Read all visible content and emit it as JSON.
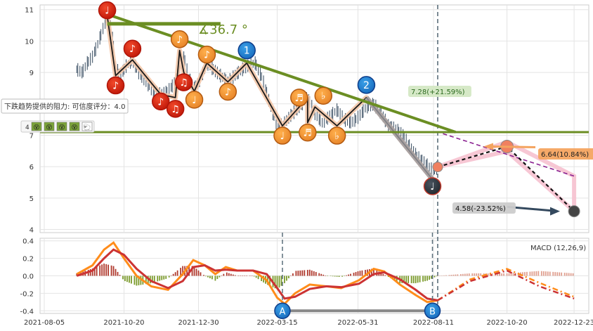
{
  "chart_data": [
    {
      "type": "line",
      "panel": "price",
      "y_ticks": [
        4,
        5,
        6,
        7,
        8,
        9,
        10,
        11
      ],
      "ylim": [
        3.9,
        11.15
      ],
      "x_tick_labels": [
        "2021-08-05",
        "2021-10-20",
        "2021-12-30",
        "2022-03-15",
        "2022-05-31",
        "2022-08-11",
        "2022-10-20",
        "2022-12-23"
      ],
      "price_series": [
        [
          "2021-09-05",
          9.1
        ],
        [
          "2021-09-10",
          9.0
        ],
        [
          "2021-09-15",
          9.3
        ],
        [
          "2021-09-20",
          9.5
        ],
        [
          "2021-09-25",
          9.9
        ],
        [
          "2021-10-01",
          10.5
        ],
        [
          "2021-10-04",
          10.8
        ],
        [
          "2021-10-08",
          10.4
        ],
        [
          "2021-10-12",
          9.2
        ],
        [
          "2021-10-16",
          8.9
        ],
        [
          "2021-10-22",
          9.2
        ],
        [
          "2021-10-28",
          9.4
        ],
        [
          "2021-11-03",
          9.0
        ],
        [
          "2021-11-10",
          8.7
        ],
        [
          "2021-11-17",
          8.4
        ],
        [
          "2021-11-24",
          8.3
        ],
        [
          "2021-12-01",
          8.4
        ],
        [
          "2021-12-08",
          8.7
        ],
        [
          "2021-12-12",
          9.1
        ],
        [
          "2021-12-16",
          9.5
        ],
        [
          "2021-12-21",
          8.8
        ],
        [
          "2021-12-26",
          8.5
        ],
        [
          "2022-01-01",
          8.8
        ],
        [
          "2022-01-07",
          9.3
        ],
        [
          "2022-01-13",
          9.1
        ],
        [
          "2022-01-20",
          8.9
        ],
        [
          "2022-01-27",
          8.7
        ],
        [
          "2022-02-06",
          9.0
        ],
        [
          "2022-02-14",
          9.2
        ],
        [
          "2022-02-22",
          9.3
        ],
        [
          "2022-03-01",
          8.8
        ],
        [
          "2022-03-08",
          8.0
        ],
        [
          "2022-03-14",
          7.4
        ],
        [
          "2022-03-20",
          7.3
        ],
        [
          "2022-03-27",
          7.6
        ],
        [
          "2022-04-05",
          7.9
        ],
        [
          "2022-04-13",
          8.2
        ],
        [
          "2022-04-20",
          7.7
        ],
        [
          "2022-04-27",
          7.4
        ],
        [
          "2022-05-04",
          7.6
        ],
        [
          "2022-05-11",
          7.8
        ],
        [
          "2022-05-18",
          7.5
        ],
        [
          "2022-05-25",
          7.4
        ],
        [
          "2022-06-01",
          7.6
        ],
        [
          "2022-06-08",
          7.9
        ],
        [
          "2022-06-15",
          8.0
        ],
        [
          "2022-06-22",
          7.7
        ],
        [
          "2022-06-29",
          7.3
        ],
        [
          "2022-07-06",
          7.2
        ],
        [
          "2022-07-13",
          7.0
        ],
        [
          "2022-07-20",
          6.6
        ],
        [
          "2022-07-27",
          6.3
        ],
        [
          "2022-08-03",
          6.1
        ],
        [
          "2022-08-10",
          5.9
        ],
        [
          "2022-08-17",
          6.0
        ]
      ],
      "wave_points": [
        {
          "date": "2021-10-04",
          "price": 10.8,
          "symbol": "♩",
          "color": "red"
        },
        {
          "date": "2021-10-12",
          "price": 8.9,
          "symbol": "♪",
          "color": "red"
        },
        {
          "date": "2021-10-28",
          "price": 9.4,
          "symbol": "♪",
          "color": "red"
        },
        {
          "date": "2021-11-24",
          "price": 8.3,
          "symbol": "♪",
          "color": "red"
        },
        {
          "date": "2021-12-08",
          "price": 8.2,
          "symbol": "♫",
          "color": "red"
        },
        {
          "date": "2021-12-16",
          "price": 9.0,
          "symbol": "♫",
          "color": "red"
        },
        {
          "date": "2021-12-12",
          "price": 9.7,
          "symbol": "♪",
          "color": "orange"
        },
        {
          "date": "2021-12-26",
          "price": 8.4,
          "symbol": "♩",
          "color": "orange"
        },
        {
          "date": "2022-01-07",
          "price": 9.3,
          "symbol": "♪",
          "color": "orange"
        },
        {
          "date": "2022-01-27",
          "price": 8.7,
          "symbol": "♪",
          "color": "orange"
        },
        {
          "date": "2022-02-14",
          "price": 9.3,
          "symbol": "1",
          "color": "blue"
        },
        {
          "date": "2022-03-20",
          "price": 7.3,
          "symbol": "♩",
          "color": "orange"
        },
        {
          "date": "2022-04-13",
          "price": 8.2,
          "symbol": "♬",
          "color": "orange"
        },
        {
          "date": "2022-04-13",
          "price": 7.4,
          "symbol": "♬",
          "color": "orange"
        },
        {
          "date": "2022-04-20",
          "price": 7.9,
          "symbol": "♭",
          "color": "orange"
        },
        {
          "date": "2022-05-11",
          "price": 7.3,
          "symbol": "♭",
          "color": "orange"
        },
        {
          "date": "2022-06-08",
          "price": 8.2,
          "symbol": "2",
          "color": "blue"
        },
        {
          "date": "2022-08-10",
          "price": 5.6,
          "symbol": "♩",
          "color": "dark"
        }
      ],
      "resistance_line": {
        "from": [
          "2021-10-04",
          10.85
        ],
        "to": [
          "2022-09-01",
          7.1
        ],
        "color": "#6b8e23"
      },
      "horizontal_line": {
        "level": 7.1,
        "color": "#6b8e23"
      },
      "angle_label": "∡36.7 °",
      "resistance_note": "下跌趋势提供的阻力: 可信度评分：4.0",
      "rating_value": "4",
      "rating_icons": [
        "😵",
        "😵",
        "😵",
        "😵",
        "🐑"
      ],
      "vertical_marker_date": "2022-08-15",
      "projections": [
        {
          "label": "7.28(+21.59%)",
          "bg": "#d4e8c4",
          "fg": "#2b6a1e"
        },
        {
          "label": "6.64(10.84%)",
          "bg": "#f4a460",
          "fg": "#222222",
          "from": [
            "2022-08-15",
            5.99
          ],
          "to": [
            "2022-10-20",
            6.64
          ]
        },
        {
          "label": "4.58(-23.52%)",
          "bg": "#cccccc",
          "fg": "#111111",
          "from": [
            "2022-10-20",
            6.64
          ],
          "to": [
            "2022-12-23",
            4.58
          ]
        }
      ],
      "projection_points": [
        [
          "2022-08-15",
          5.99
        ],
        [
          "2022-10-20",
          6.64
        ],
        [
          "2022-12-23",
          4.58
        ]
      ]
    },
    {
      "type": "bar",
      "panel": "macd",
      "title": "MACD (12,26,9)",
      "y_ticks": [
        -0.4,
        -0.2,
        0.0,
        0.2,
        0.4
      ],
      "ylim": [
        -0.43,
        0.43
      ],
      "dif": [
        [
          "2021-09-05",
          0.02
        ],
        [
          "2021-09-20",
          0.12
        ],
        [
          "2021-10-01",
          0.3
        ],
        [
          "2021-10-10",
          0.38
        ],
        [
          "2021-10-20",
          0.2
        ],
        [
          "2021-11-01",
          0.0
        ],
        [
          "2021-11-15",
          -0.12
        ],
        [
          "2021-12-01",
          -0.16
        ],
        [
          "2021-12-15",
          0.02
        ],
        [
          "2021-12-25",
          0.18
        ],
        [
          "2022-01-05",
          0.12
        ],
        [
          "2022-01-15",
          0.02
        ],
        [
          "2022-01-25",
          0.1
        ],
        [
          "2022-02-05",
          0.06
        ],
        [
          "2022-02-20",
          0.06
        ],
        [
          "2022-03-05",
          -0.05
        ],
        [
          "2022-03-15",
          -0.25
        ],
        [
          "2022-03-22",
          -0.32
        ],
        [
          "2022-04-01",
          -0.2
        ],
        [
          "2022-04-15",
          -0.1
        ],
        [
          "2022-05-01",
          -0.12
        ],
        [
          "2022-05-15",
          -0.14
        ],
        [
          "2022-06-01",
          -0.05
        ],
        [
          "2022-06-15",
          0.08
        ],
        [
          "2022-06-25",
          0.05
        ],
        [
          "2022-07-10",
          -0.1
        ],
        [
          "2022-07-25",
          -0.22
        ],
        [
          "2022-08-05",
          -0.3
        ],
        [
          "2022-08-15",
          -0.28
        ]
      ],
      "dea": [
        [
          "2021-09-05",
          0.0
        ],
        [
          "2021-09-20",
          0.06
        ],
        [
          "2021-10-01",
          0.2
        ],
        [
          "2021-10-10",
          0.3
        ],
        [
          "2021-10-20",
          0.24
        ],
        [
          "2021-11-01",
          0.08
        ],
        [
          "2021-11-15",
          -0.06
        ],
        [
          "2021-12-01",
          -0.14
        ],
        [
          "2021-12-15",
          -0.06
        ],
        [
          "2021-12-25",
          0.1
        ],
        [
          "2022-01-05",
          0.12
        ],
        [
          "2022-01-15",
          0.06
        ],
        [
          "2022-01-25",
          0.07
        ],
        [
          "2022-02-05",
          0.06
        ],
        [
          "2022-02-20",
          0.06
        ],
        [
          "2022-03-05",
          0.02
        ],
        [
          "2022-03-15",
          -0.14
        ],
        [
          "2022-03-22",
          -0.26
        ],
        [
          "2022-04-01",
          -0.24
        ],
        [
          "2022-04-15",
          -0.15
        ],
        [
          "2022-05-01",
          -0.12
        ],
        [
          "2022-05-15",
          -0.13
        ],
        [
          "2022-06-01",
          -0.09
        ],
        [
          "2022-06-15",
          0.02
        ],
        [
          "2022-06-25",
          0.04
        ],
        [
          "2022-07-10",
          -0.04
        ],
        [
          "2022-07-25",
          -0.16
        ],
        [
          "2022-08-05",
          -0.26
        ],
        [
          "2022-08-15",
          -0.28
        ]
      ],
      "dif_projection": [
        [
          "2022-08-15",
          -0.28
        ],
        [
          "2022-09-15",
          -0.04
        ],
        [
          "2022-10-20",
          0.08
        ],
        [
          "2022-11-20",
          -0.08
        ],
        [
          "2022-12-23",
          -0.24
        ]
      ],
      "dea_projection": [
        [
          "2022-08-15",
          -0.28
        ],
        [
          "2022-09-15",
          -0.06
        ],
        [
          "2022-10-20",
          0.06
        ],
        [
          "2022-11-20",
          -0.12
        ],
        [
          "2022-12-23",
          -0.26
        ]
      ],
      "divergence_markers": [
        {
          "label": "A",
          "date": "2022-03-20",
          "value": -0.4
        },
        {
          "label": "B",
          "date": "2022-08-10",
          "value": -0.4
        }
      ],
      "colors": {
        "dif": "#ff8c1a",
        "dea": "#cc3333",
        "hist_pos": "#b03a2e",
        "hist_neg": "#7a9a2a",
        "hist_proj": "#e0a090"
      }
    }
  ]
}
